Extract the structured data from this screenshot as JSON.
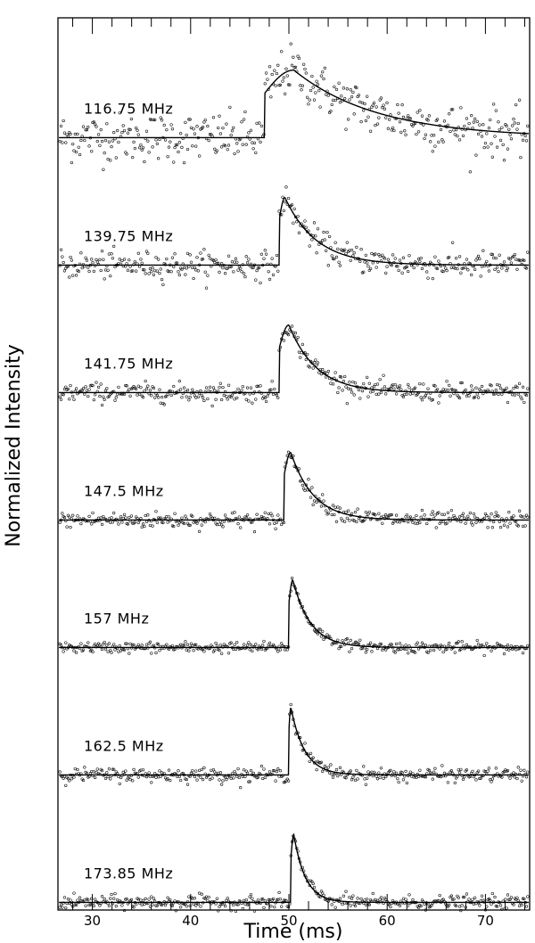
{
  "chart_data": {
    "type": "scatter",
    "title": "",
    "xlabel": "Time (ms)",
    "ylabel": "Normalized Intensity",
    "xlim": [
      26.5,
      74.5
    ],
    "x_ticks": [
      30,
      40,
      50,
      60,
      70
    ],
    "x_minor_step": 2,
    "grid": false,
    "legend": "none",
    "fit_line": "solid black model curve over open-circle data points",
    "series": [
      {
        "name": "116.75 MHz",
        "onset_ms": 47.5,
        "peak_ms": 50.5,
        "decay_ms": 8.5,
        "noise": 0.18
      },
      {
        "name": "139.75 MHz",
        "onset_ms": 49.0,
        "peak_ms": 49.6,
        "decay_ms": 3.2,
        "noise": 0.1
      },
      {
        "name": "141.75 MHz",
        "onset_ms": 49.0,
        "peak_ms": 50.0,
        "decay_ms": 2.8,
        "noise": 0.07
      },
      {
        "name": "147.5 MHz",
        "onset_ms": 49.5,
        "peak_ms": 50.2,
        "decay_ms": 2.3,
        "noise": 0.06
      },
      {
        "name": "157 MHz",
        "onset_ms": 50.0,
        "peak_ms": 50.4,
        "decay_ms": 1.8,
        "noise": 0.04
      },
      {
        "name": "162.5 MHz",
        "onset_ms": 50.0,
        "peak_ms": 50.2,
        "decay_ms": 1.4,
        "noise": 0.05
      },
      {
        "name": "173.85 MHz",
        "onset_ms": 50.2,
        "peak_ms": 50.5,
        "decay_ms": 1.2,
        "noise": 0.05
      }
    ]
  }
}
